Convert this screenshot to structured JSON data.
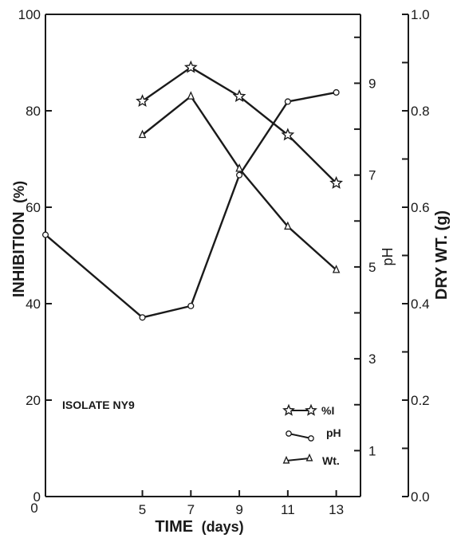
{
  "chart_data": {
    "type": "line",
    "title": "",
    "annotation": "ISOLATE NY9",
    "xlabel": "TIME",
    "xlabel_unit": "(days)",
    "x_ticks": [
      "5",
      "7",
      "9",
      "11",
      "13"
    ],
    "xlim": [
      1,
      14
    ],
    "y_left": {
      "label": "INHIBITION",
      "unit": "(%)",
      "ticks": [
        "0",
        "20",
        "40",
        "60",
        "80",
        "100"
      ],
      "range": [
        0,
        100
      ]
    },
    "y_ph": {
      "label": "pH",
      "ticks": [
        "1",
        "3",
        "5",
        "7",
        "9"
      ],
      "range": [
        0,
        10.5
      ]
    },
    "y_right": {
      "label": "DRY WT. (g)",
      "ticks": [
        "0.0",
        "0.2",
        "0.4",
        "0.6",
        "0.8",
        "1.0"
      ],
      "range": [
        0,
        1.0
      ]
    },
    "grid": false,
    "legend_position": "bottom-right",
    "series": [
      {
        "name": "%I",
        "marker": "star",
        "axis": "left",
        "x": [
          5,
          7,
          9,
          11,
          13
        ],
        "values": [
          82,
          89,
          83,
          75,
          65
        ]
      },
      {
        "name": "pH",
        "marker": "circle",
        "axis": "ph",
        "x": [
          1,
          5,
          7,
          9,
          11,
          13
        ],
        "values": [
          5.7,
          3.9,
          4.15,
          7.0,
          8.6,
          8.8
        ]
      },
      {
        "name": "Wt.",
        "marker": "triangle",
        "axis": "right",
        "x": [
          5,
          7,
          9,
          11,
          13
        ],
        "values": [
          0.75,
          0.83,
          0.68,
          0.56,
          0.47
        ]
      }
    ]
  }
}
